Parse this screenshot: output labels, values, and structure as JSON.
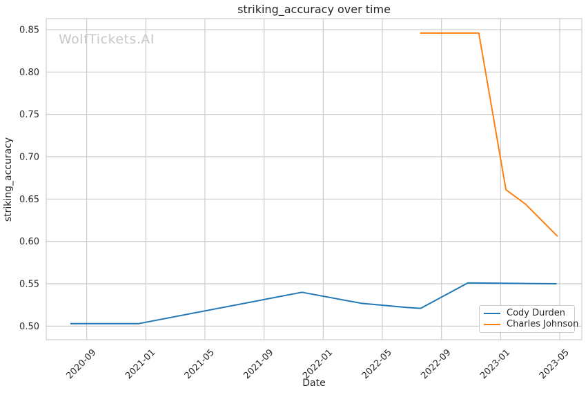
{
  "figure": {
    "watermark": "WolfTickets.AI",
    "watermark_color": "#c8c8c8",
    "background_color": "#ffffff",
    "text_color": "#262626",
    "grid_color": "#cccccc"
  },
  "chart_data": {
    "type": "line",
    "title": "striking_accuracy over time",
    "xlabel": "Date",
    "ylabel": "striking_accuracy",
    "grid": true,
    "legend_position": "lower right",
    "x_tick_labels": [
      "2020-09",
      "2021-01",
      "2021-05",
      "2021-09",
      "2022-01",
      "2022-05",
      "2022-09",
      "2023-01",
      "2023-05"
    ],
    "y_tick_labels": [
      "0.50",
      "0.55",
      "0.60",
      "0.65",
      "0.70",
      "0.75",
      "0.80",
      "0.85"
    ],
    "y_tick_values": [
      0.5,
      0.55,
      0.6,
      0.65,
      0.7,
      0.75,
      0.8,
      0.85
    ],
    "xlim_dates": [
      "2020-06-09",
      "2023-06-16"
    ],
    "ylim": [
      0.484,
      0.863
    ],
    "series": [
      {
        "name": "Cody Durden",
        "color": "#1f77b4",
        "points": [
          {
            "date": "2020-07-28",
            "value": 0.503
          },
          {
            "date": "2020-12-17",
            "value": 0.503
          },
          {
            "date": "2021-11-18",
            "value": 0.54
          },
          {
            "date": "2022-03-18",
            "value": 0.527
          },
          {
            "date": "2022-06-22",
            "value": 0.522
          },
          {
            "date": "2022-07-19",
            "value": 0.521
          },
          {
            "date": "2022-10-25",
            "value": 0.551
          },
          {
            "date": "2023-04-25",
            "value": 0.55
          }
        ]
      },
      {
        "name": "Charles Johnson",
        "color": "#ff7f0e",
        "points": [
          {
            "date": "2022-07-18",
            "value": 0.846
          },
          {
            "date": "2022-11-17",
            "value": 0.846
          },
          {
            "date": "2023-01-12",
            "value": 0.661
          },
          {
            "date": "2023-02-22",
            "value": 0.644
          },
          {
            "date": "2023-04-27",
            "value": 0.606
          }
        ]
      }
    ]
  }
}
